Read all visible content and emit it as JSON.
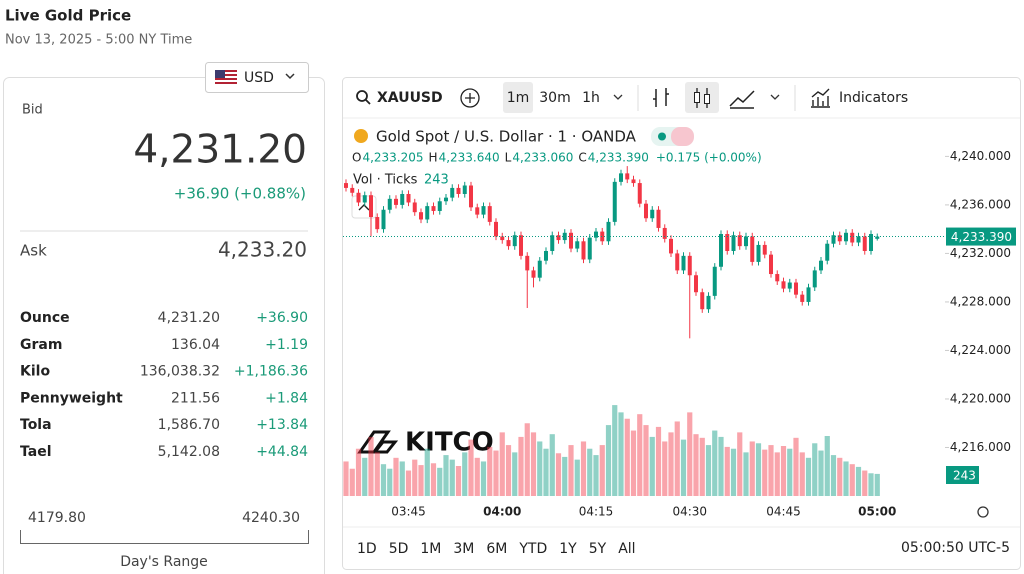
{
  "header": {
    "title": "Live Gold Price",
    "subtitle": "Nov 13, 2025 - 5:00 NY Time"
  },
  "quote": {
    "currency": "USD",
    "bid_label": "Bid",
    "bid": "4,231.20",
    "bid_change": "+36.90 (+0.88%)",
    "ask_label": "Ask",
    "ask": "4,233.20",
    "rows": [
      {
        "unit": "Ounce",
        "price": "4,231.20",
        "change": "+36.90"
      },
      {
        "unit": "Gram",
        "price": "136.04",
        "change": "+1.19"
      },
      {
        "unit": "Kilo",
        "price": "136,038.32",
        "change": "+1,186.36"
      },
      {
        "unit": "Pennyweight",
        "price": "211.56",
        "change": "+1.84"
      },
      {
        "unit": "Tola",
        "price": "1,586.70",
        "change": "+13.84"
      },
      {
        "unit": "Tael",
        "price": "5,142.08",
        "change": "+44.84"
      }
    ],
    "range_low": "4179.80",
    "range_high": "4240.30",
    "range_label": "Day's Range"
  },
  "toolbar": {
    "symbol": "XAUUSD",
    "intervals": [
      "1m",
      "30m",
      "1h"
    ],
    "indicators": "Indicators"
  },
  "footer": {
    "ranges": [
      "1D",
      "5D",
      "1M",
      "3M",
      "6M",
      "YTD",
      "1Y",
      "5Y",
      "All"
    ],
    "clock": "05:00:50 UTC-5"
  },
  "chart_data": {
    "type": "candlestick",
    "title": "Gold Spot / U.S. Dollar · 1 · OANDA",
    "ohlc": [
      {
        "key": "O",
        "value": "4,233.205"
      },
      {
        "key": "H",
        "value": "4,233.640"
      },
      {
        "key": "L",
        "value": "4,233.060"
      },
      {
        "key": "C",
        "value": "4,233.390"
      }
    ],
    "change": "+0.175 (+0.00%)",
    "volume_label": "Vol · Ticks",
    "logo": "KITCO",
    "categories": [
      null,
      null,
      null,
      null,
      null,
      null,
      null,
      null,
      null,
      null,
      "03:45",
      null,
      null,
      null,
      null,
      null,
      null,
      null,
      null,
      null,
      null,
      null,
      null,
      null,
      null,
      "04:00",
      null,
      null,
      null,
      null,
      null,
      null,
      null,
      null,
      null,
      null,
      null,
      null,
      null,
      null,
      "04:15",
      null,
      null,
      null,
      null,
      null,
      null,
      null,
      null,
      null,
      null,
      null,
      null,
      null,
      null,
      "04:30",
      null,
      null,
      null,
      null,
      null,
      null,
      null,
      null,
      null,
      null,
      null,
      null,
      null,
      null,
      "04:45",
      null,
      null,
      null,
      null,
      null,
      null,
      null,
      null,
      null,
      null,
      null,
      null,
      null,
      null,
      "05:00"
    ],
    "open": [
      4237.8,
      4237.4,
      4237.0,
      4236.2,
      4236.8,
      4235.0,
      4234.0,
      4235.6,
      4236.5,
      4236.0,
      4236.9,
      4236.2,
      4235.4,
      4234.8,
      4235.9,
      4235.5,
      4236.3,
      4236.6,
      4237.4,
      4236.9,
      4237.6,
      4235.8,
      4235.2,
      4235.9,
      4234.6,
      4233.4,
      4233.1,
      4232.6,
      4233.5,
      4231.8,
      4230.6,
      4230.0,
      4231.4,
      4232.2,
      4233.5,
      4233.1,
      4233.7,
      4232.4,
      4233.0,
      4231.5,
      4233.3,
      4233.8,
      4233.0,
      4234.6,
      4237.9,
      4238.6,
      4238.1,
      4237.8,
      4236.1,
      4234.9,
      4235.6,
      4234.1,
      4233.2,
      4232.0,
      4230.6,
      4231.8,
      4230.2,
      4228.8,
      4227.4,
      4228.5,
      4230.9,
      4233.6,
      4232.2,
      4233.5,
      4232.6,
      4233.4,
      4231.3,
      4232.7,
      4231.9,
      4230.3,
      4229.7,
      4229.1,
      4229.6,
      4228.6,
      4228.0,
      4229.2,
      4230.6,
      4231.4,
      4232.8,
      4233.5,
      4233.0,
      4233.7,
      4232.9,
      4233.4,
      4232.2,
      4233.205
    ],
    "high": [
      4238.1,
      4237.7,
      4237.3,
      4237.1,
      4237.1,
      4235.3,
      4235.9,
      4236.8,
      4236.8,
      4237.2,
      4237.2,
      4236.5,
      4235.7,
      4236.2,
      4236.2,
      4236.6,
      4236.9,
      4237.7,
      4237.7,
      4237.9,
      4237.9,
      4236.1,
      4236.2,
      4236.2,
      4234.9,
      4233.7,
      4233.4,
      4233.8,
      4233.8,
      4232.1,
      4230.9,
      4231.7,
      4232.5,
      4233.8,
      4233.8,
      4234.0,
      4234.0,
      4233.3,
      4233.3,
      4233.6,
      4234.1,
      4234.1,
      4234.9,
      4238.2,
      4238.9,
      4239.2,
      4238.4,
      4238.1,
      4236.4,
      4235.9,
      4235.9,
      4234.4,
      4233.5,
      4232.3,
      4232.1,
      4232.1,
      4230.5,
      4229.1,
      4228.8,
      4231.2,
      4233.9,
      4233.9,
      4233.8,
      4233.8,
      4233.7,
      4233.7,
      4233.0,
      4233.0,
      4232.2,
      4230.6,
      4230.0,
      4229.9,
      4229.9,
      4228.9,
      4229.5,
      4230.9,
      4231.7,
      4233.1,
      4233.8,
      4233.8,
      4234.0,
      4234.0,
      4233.7,
      4233.7,
      4233.9,
      4233.64
    ],
    "low": [
      4237.1,
      4236.7,
      4235.9,
      4235.9,
      4233.4,
      4233.7,
      4233.7,
      4235.3,
      4235.7,
      4235.7,
      4235.9,
      4235.1,
      4234.5,
      4234.5,
      4235.2,
      4235.2,
      4236.0,
      4236.3,
      4236.6,
      4236.6,
      4235.5,
      4234.9,
      4234.9,
      4234.3,
      4233.1,
      4232.8,
      4232.3,
      4232.3,
      4231.5,
      4227.5,
      4229.2,
      4229.7,
      4231.1,
      4231.9,
      4232.8,
      4232.8,
      4232.1,
      4232.1,
      4231.2,
      4231.2,
      4233.0,
      4232.7,
      4232.7,
      4234.3,
      4237.6,
      4237.8,
      4237.5,
      4235.8,
      4234.6,
      4234.6,
      4233.8,
      4232.9,
      4231.7,
      4230.3,
      4230.3,
      4225.0,
      4228.5,
      4227.1,
      4227.1,
      4228.2,
      4230.6,
      4231.9,
      4231.9,
      4232.3,
      4232.3,
      4231.0,
      4231.0,
      4231.6,
      4230.0,
      4229.4,
      4228.8,
      4228.8,
      4228.3,
      4227.7,
      4227.7,
      4228.9,
      4230.3,
      4231.1,
      4232.5,
      4232.7,
      4232.7,
      4232.6,
      4232.6,
      4231.9,
      4231.9,
      4233.06
    ],
    "close": [
      4237.4,
      4237.0,
      4236.2,
      4236.8,
      4235.0,
      4234.0,
      4235.6,
      4236.5,
      4236.0,
      4236.9,
      4236.2,
      4235.4,
      4234.8,
      4235.9,
      4235.5,
      4236.3,
      4236.6,
      4237.4,
      4236.9,
      4237.6,
      4235.8,
      4235.2,
      4235.9,
      4234.6,
      4233.4,
      4233.1,
      4232.6,
      4233.5,
      4231.8,
      4230.6,
      4230.0,
      4231.4,
      4232.2,
      4233.5,
      4233.1,
      4233.7,
      4232.4,
      4233.0,
      4231.5,
      4233.3,
      4233.8,
      4233.0,
      4234.6,
      4237.9,
      4238.6,
      4238.1,
      4237.8,
      4236.1,
      4234.9,
      4235.6,
      4234.1,
      4233.2,
      4232.0,
      4230.6,
      4231.8,
      4230.2,
      4228.8,
      4227.4,
      4228.5,
      4230.9,
      4233.6,
      4232.2,
      4233.5,
      4232.6,
      4233.4,
      4231.3,
      4232.7,
      4231.9,
      4230.3,
      4229.7,
      4229.1,
      4229.6,
      4228.6,
      4228.0,
      4229.2,
      4230.6,
      4231.4,
      4232.8,
      4233.5,
      4233.0,
      4233.7,
      4232.9,
      4233.4,
      4232.2,
      4233.6,
      4233.39
    ],
    "volume": [
      380,
      300,
      520,
      420,
      650,
      480,
      350,
      300,
      420,
      380,
      280,
      400,
      340,
      520,
      360,
      310,
      450,
      400,
      330,
      480,
      620,
      420,
      380,
      540,
      500,
      700,
      560,
      480,
      650,
      800,
      700,
      600,
      520,
      680,
      470,
      430,
      560,
      400,
      600,
      520,
      450,
      560,
      780,
      1000,
      920,
      850,
      720,
      900,
      780,
      650,
      760,
      600,
      700,
      820,
      620,
      920,
      680,
      640,
      560,
      720,
      650,
      540,
      520,
      700,
      480,
      600,
      580,
      510,
      560,
      480,
      550,
      520,
      640,
      480,
      420,
      580,
      500,
      660,
      450,
      420,
      380,
      350,
      320,
      280,
      250,
      243
    ],
    "up_color": "#089981",
    "down_color": "#f23645",
    "ylim": [
      4212,
      4243
    ],
    "yticks": [
      {
        "value": 4240,
        "label": "4,240.000"
      },
      {
        "value": 4236,
        "label": "4,236.000"
      },
      {
        "value": 4232,
        "label": "4,232.000"
      },
      {
        "value": 4228,
        "label": "4,228.000"
      },
      {
        "value": 4224,
        "label": "4,224.000"
      },
      {
        "value": 4220,
        "label": "4,220.000"
      },
      {
        "value": 4216,
        "label": "4,216.000"
      }
    ],
    "volume_ylim": [
      0,
      1100
    ],
    "last_price_label": "4,233.390"
  }
}
